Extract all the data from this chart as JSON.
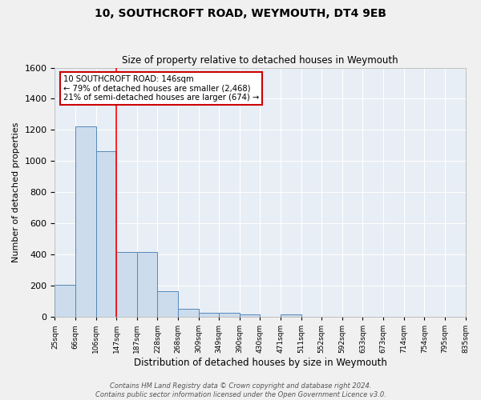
{
  "title": "10, SOUTHCROFT ROAD, WEYMOUTH, DT4 9EB",
  "subtitle": "Size of property relative to detached houses in Weymouth",
  "xlabel": "Distribution of detached houses by size in Weymouth",
  "ylabel": "Number of detached properties",
  "bar_values": [
    205,
    1225,
    1065,
    415,
    415,
    165,
    50,
    28,
    25,
    15,
    0,
    15,
    0,
    0,
    0,
    0,
    0,
    0,
    0,
    0
  ],
  "bar_labels": [
    "25sqm",
    "66sqm",
    "106sqm",
    "147sqm",
    "187sqm",
    "228sqm",
    "268sqm",
    "309sqm",
    "349sqm",
    "390sqm",
    "430sqm",
    "471sqm",
    "511sqm",
    "552sqm",
    "592sqm",
    "633sqm",
    "673sqm",
    "714sqm",
    "754sqm",
    "795sqm",
    "835sqm"
  ],
  "bar_color": "#ccdcec",
  "bar_edge_color": "#5588bb",
  "ylim": [
    0,
    1600
  ],
  "yticks": [
    0,
    200,
    400,
    600,
    800,
    1000,
    1200,
    1400,
    1600
  ],
  "annotation_text": "10 SOUTHCROFT ROAD: 146sqm\n← 79% of detached houses are smaller (2,468)\n21% of semi-detached houses are larger (674) →",
  "annotation_box_color": "#ffffff",
  "annotation_box_edge": "#cc0000",
  "footer_text": "Contains HM Land Registry data © Crown copyright and database right 2024.\nContains public sector information licensed under the Open Government Licence v3.0.",
  "background_color": "#e8eef5",
  "grid_color": "#ffffff",
  "red_line_x": 2.5
}
